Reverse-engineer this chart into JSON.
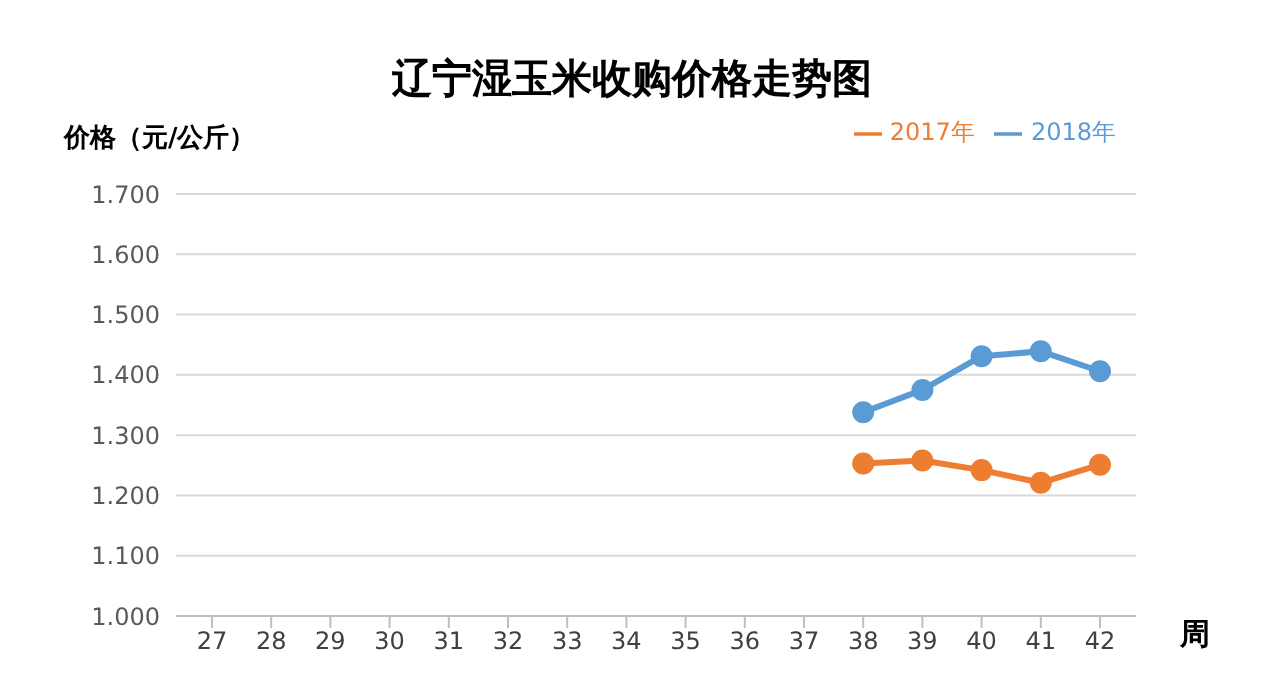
{
  "chart_data": {
    "type": "line",
    "title": "辽宁湿玉米收购价格走势图",
    "ylabel": "价格（元/公斤）",
    "xlabel": "周",
    "categories": [
      "27",
      "28",
      "29",
      "30",
      "31",
      "32",
      "33",
      "34",
      "35",
      "36",
      "37",
      "38",
      "39",
      "40",
      "41",
      "42"
    ],
    "series": [
      {
        "name": "2018年",
        "color": "#5b9bd5",
        "values": [
          null,
          null,
          null,
          null,
          null,
          null,
          null,
          null,
          null,
          null,
          null,
          1.338,
          1.375,
          1.431,
          1.439,
          1.406
        ]
      },
      {
        "name": "2017年",
        "color": "#ed7d31",
        "values": [
          null,
          null,
          null,
          null,
          null,
          null,
          null,
          null,
          null,
          null,
          null,
          1.253,
          1.258,
          1.242,
          1.221,
          1.251
        ]
      }
    ],
    "ylim": [
      1,
      1.7
    ],
    "yticks": [
      {
        "value": 1,
        "label": "1.000"
      },
      {
        "value": 1.1,
        "label": "1.100"
      },
      {
        "value": 1.2,
        "label": "1.200"
      },
      {
        "value": 1.3,
        "label": "1.300"
      },
      {
        "value": 1.4,
        "label": "1.400"
      },
      {
        "value": 1.5,
        "label": "1.500"
      },
      {
        "value": 1.6,
        "label": "1.600"
      },
      {
        "value": 1.7,
        "label": "1.700"
      }
    ],
    "grid": "y",
    "legend": "top right",
    "marker": "circle",
    "line_style": "solid"
  }
}
